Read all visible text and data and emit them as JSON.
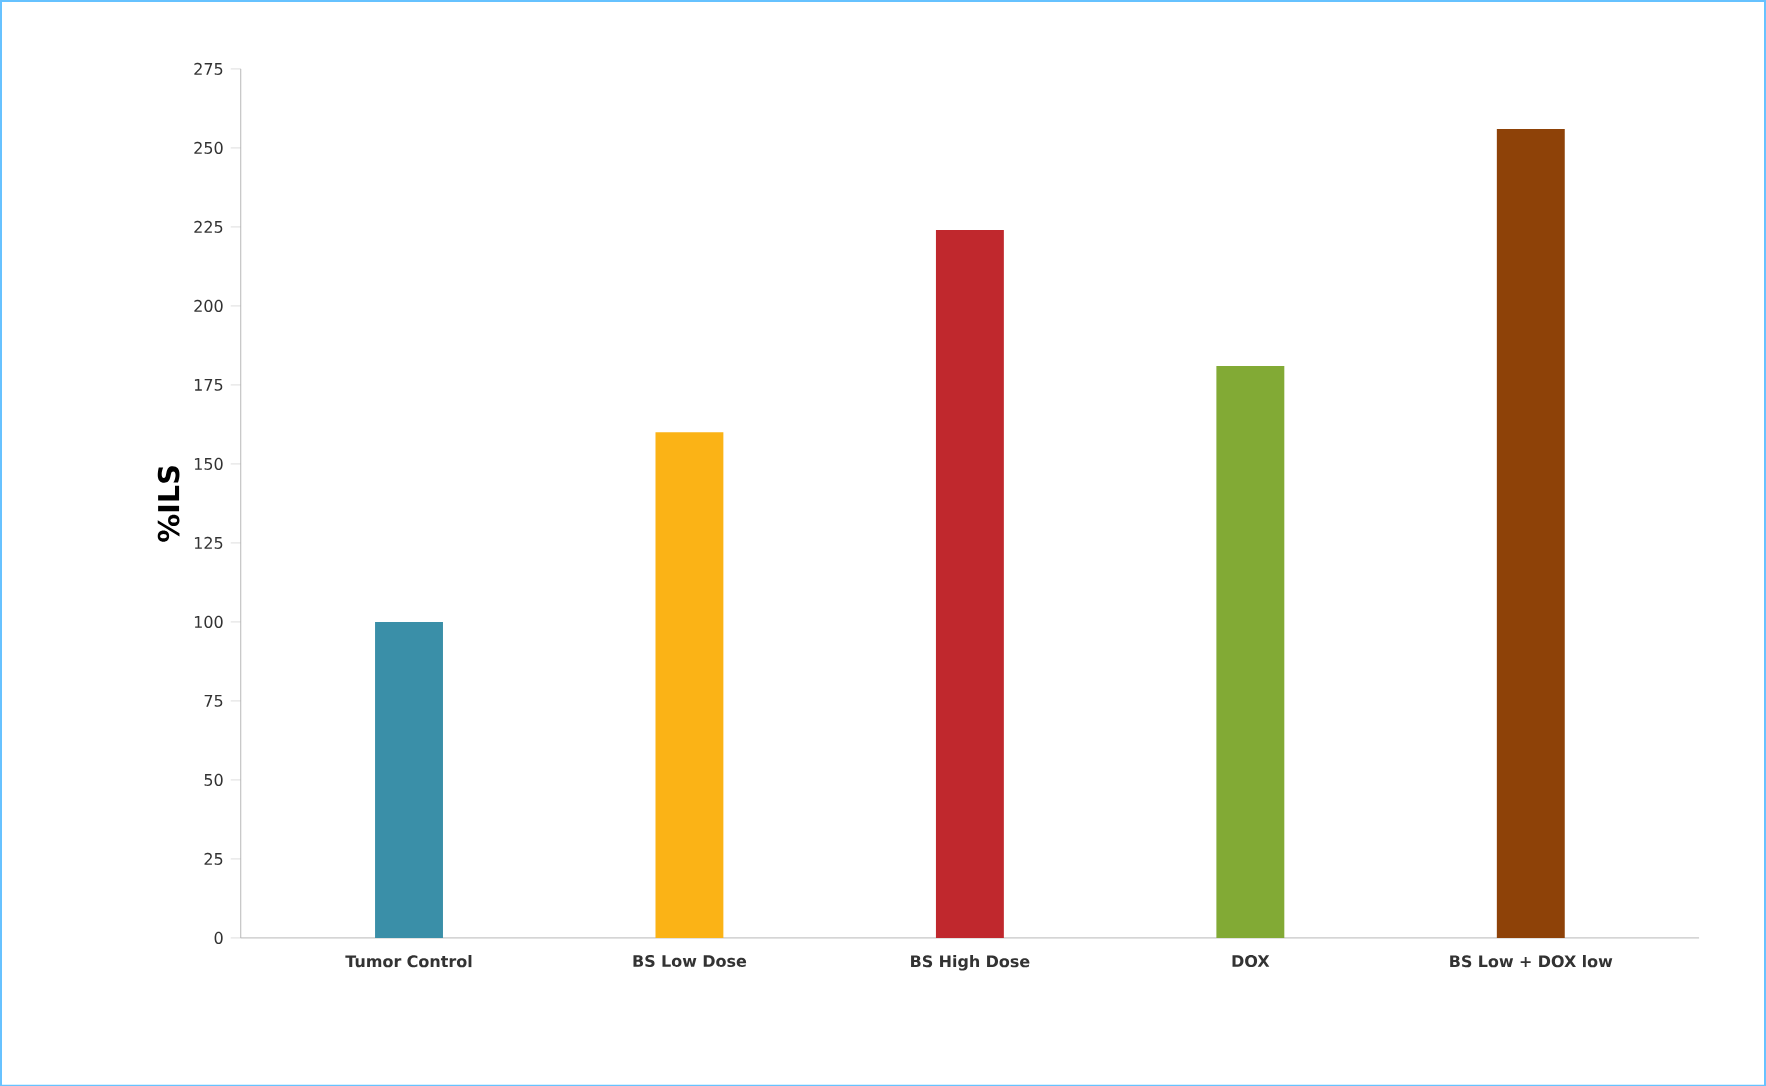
{
  "chart_data": {
    "type": "bar",
    "ylabel": "%ILS",
    "categories": [
      "Tumor Control",
      "BS Low  Dose",
      "BS High Dose",
      "DOX",
      "BS Low  + DOX low"
    ],
    "values": [
      100,
      160,
      224,
      181,
      256
    ],
    "colors": [
      "#3a8fa8",
      "#fbb316",
      "#c0282d",
      "#82aa35",
      "#8e4208"
    ],
    "ylim": [
      0,
      275
    ],
    "yticks": [
      0,
      25,
      50,
      75,
      100,
      125,
      150,
      175,
      200,
      225,
      250,
      275
    ]
  }
}
